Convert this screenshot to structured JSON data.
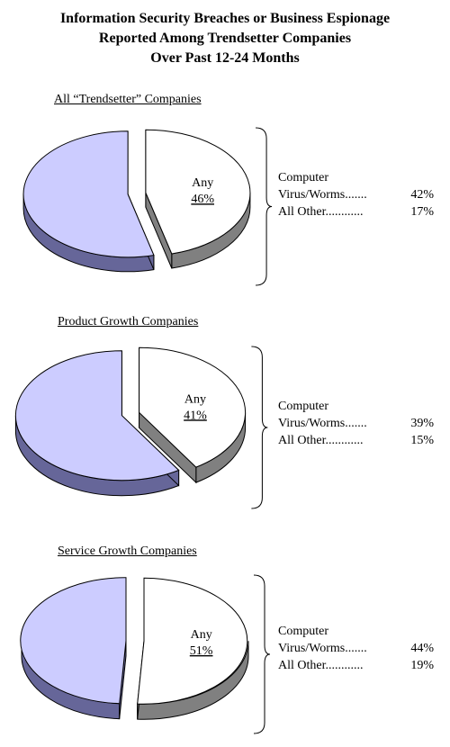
{
  "title_lines": [
    "Information Security Breaches or Business Espionage",
    "Reported Among Trendsetter Companies",
    "Over Past 12-24 Months"
  ],
  "colors": {
    "remainder_top": "#ccccff",
    "remainder_side": "#666699",
    "slice_top": "#ffffff",
    "slice_side": "#808080"
  },
  "chart_data": [
    {
      "type": "pie",
      "title": "All “Trendsetter” Companies",
      "slice_label": "Any",
      "slice_value": 46,
      "slice_value_text": "46%",
      "breakdown_heading": "Computer",
      "breakdown": [
        {
          "label": "Virus/Worms.......",
          "value": 42,
          "value_text": "42%"
        },
        {
          "label": "All Other............",
          "value": 17,
          "value_text": "17%"
        }
      ]
    },
    {
      "type": "pie",
      "title": "Product Growth Companies",
      "slice_label": "Any",
      "slice_value": 41,
      "slice_value_text": "41%",
      "breakdown_heading": "Computer",
      "breakdown": [
        {
          "label": "Virus/Worms.......",
          "value": 39,
          "value_text": "39%"
        },
        {
          "label": "All Other............",
          "value": 15,
          "value_text": "15%"
        }
      ]
    },
    {
      "type": "pie",
      "title": "Service Growth Companies",
      "slice_label": "Any",
      "slice_value": 51,
      "slice_value_text": "51%",
      "breakdown_heading": "Computer",
      "breakdown": [
        {
          "label": "Virus/Worms.......",
          "value": 44,
          "value_text": "44%"
        },
        {
          "label": "All Other............",
          "value": 19,
          "value_text": "19%"
        }
      ]
    }
  ]
}
